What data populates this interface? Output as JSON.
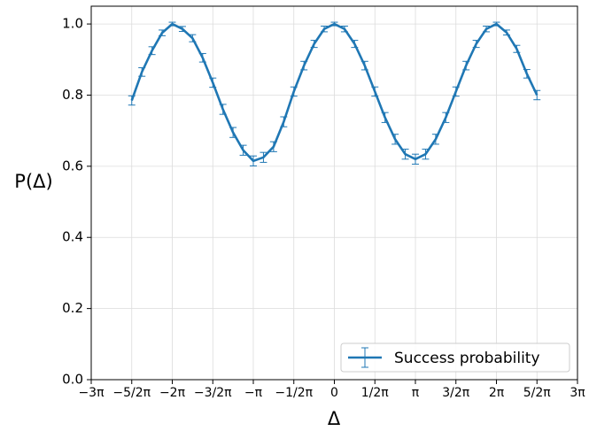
{
  "chart_data": {
    "type": "line",
    "x_label": "Δ",
    "y_label": "P(Δ)",
    "x": [
      -7.854,
      -7.461,
      -7.069,
      -6.676,
      -6.283,
      -5.89,
      -5.498,
      -5.105,
      -4.712,
      -4.32,
      -3.927,
      -3.534,
      -3.142,
      -2.749,
      -2.356,
      -1.963,
      -1.571,
      -1.178,
      -0.785,
      -0.393,
      0,
      0.393,
      0.785,
      1.178,
      1.571,
      1.963,
      2.356,
      2.749,
      3.142,
      3.534,
      3.927,
      4.32,
      4.712,
      5.105,
      5.498,
      5.89,
      6.283,
      6.676,
      7.069,
      7.461,
      7.854
    ],
    "series": [
      {
        "name": "Success probability",
        "color": "#1f77b4",
        "values": [
          0.785,
          0.865,
          0.925,
          0.975,
          1.0,
          0.986,
          0.96,
          0.905,
          0.835,
          0.76,
          0.695,
          0.645,
          0.615,
          0.625,
          0.655,
          0.725,
          0.81,
          0.883,
          0.944,
          0.986,
          1.0,
          0.986,
          0.944,
          0.883,
          0.81,
          0.737,
          0.676,
          0.634,
          0.62,
          0.634,
          0.676,
          0.737,
          0.81,
          0.883,
          0.944,
          0.986,
          1.0,
          0.976,
          0.93,
          0.86,
          0.8
        ],
        "errors": [
          0.013,
          0.012,
          0.011,
          0.008,
          0.005,
          0.007,
          0.01,
          0.012,
          0.013,
          0.014,
          0.014,
          0.014,
          0.014,
          0.014,
          0.014,
          0.014,
          0.013,
          0.012,
          0.01,
          0.008,
          0.005,
          0.008,
          0.01,
          0.012,
          0.013,
          0.014,
          0.014,
          0.014,
          0.014,
          0.014,
          0.014,
          0.014,
          0.013,
          0.012,
          0.01,
          0.008,
          0.005,
          0.007,
          0.01,
          0.012,
          0.013
        ]
      }
    ],
    "xlim": [
      -9.4248,
      9.4248
    ],
    "xticks": [
      {
        "value": -9.425,
        "label": "−3π"
      },
      {
        "value": -7.854,
        "label": "−5/2π"
      },
      {
        "value": -6.283,
        "label": "−2π"
      },
      {
        "value": -4.712,
        "label": "−3/2π"
      },
      {
        "value": -3.142,
        "label": "−π"
      },
      {
        "value": -1.571,
        "label": "−1/2π"
      },
      0,
      {
        "value": 1.571,
        "label": "1/2π"
      },
      {
        "value": 3.142,
        "label": "π"
      },
      {
        "value": 4.712,
        "label": "3/2π"
      },
      {
        "value": 6.283,
        "label": "2π"
      },
      {
        "value": 7.854,
        "label": "5/2π"
      },
      {
        "value": 9.425,
        "label": "3π"
      }
    ],
    "ylim": [
      0,
      1.05
    ],
    "yticks": [
      {
        "value": 0,
        "label": "0.0"
      },
      0.2,
      0.4,
      0.6,
      0.8,
      {
        "value": 1,
        "label": "1.0"
      }
    ],
    "grid": true,
    "legend": "lower right"
  }
}
